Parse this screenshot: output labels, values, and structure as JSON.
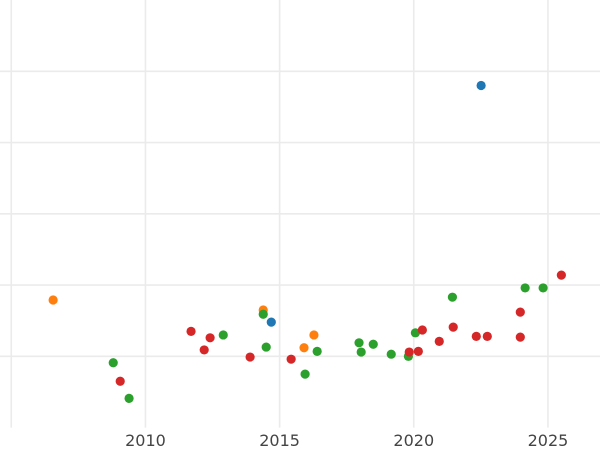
{
  "chart_data": {
    "type": "scatter",
    "title": "",
    "xlabel": "",
    "ylabel": "",
    "xlim": [
      2004.58,
      2026.94
    ],
    "ylim": [
      0,
      6
    ],
    "grid": true,
    "legend": "none",
    "x_ticks": [
      2005,
      2010,
      2015,
      2020,
      2025
    ],
    "x_tick_labels": [
      "",
      "2010",
      "2015",
      "2020",
      "2025"
    ],
    "y_ticks": [
      1,
      2,
      3,
      4,
      5
    ],
    "series": [
      {
        "color": "#1f77b4",
        "points": [
          [
            2014.69,
            1.48
          ],
          [
            2022.51,
            4.8
          ]
        ]
      },
      {
        "color": "#ff7f0e",
        "points": [
          [
            2006.56,
            1.79
          ],
          [
            2014.39,
            1.65
          ],
          [
            2015.91,
            1.12
          ],
          [
            2016.28,
            1.3
          ]
        ]
      },
      {
        "color": "#2ca02c",
        "points": [
          [
            2008.8,
            0.91
          ],
          [
            2009.39,
            0.41
          ],
          [
            2012.9,
            1.3
          ],
          [
            2014.39,
            1.59
          ],
          [
            2014.5,
            1.13
          ],
          [
            2015.95,
            0.75
          ],
          [
            2016.4,
            1.07
          ],
          [
            2017.96,
            1.19
          ],
          [
            2018.04,
            1.06
          ],
          [
            2018.49,
            1.17
          ],
          [
            2019.16,
            1.03
          ],
          [
            2019.8,
            1.0
          ],
          [
            2020.06,
            1.33
          ],
          [
            2021.44,
            1.83
          ],
          [
            2024.15,
            1.96
          ],
          [
            2024.82,
            1.96
          ]
        ]
      },
      {
        "color": "#d62728",
        "points": [
          [
            2009.06,
            0.65
          ],
          [
            2011.7,
            1.35
          ],
          [
            2012.19,
            1.09
          ],
          [
            2012.41,
            1.26
          ],
          [
            2013.9,
            0.99
          ],
          [
            2015.43,
            0.96
          ],
          [
            2019.83,
            1.06
          ],
          [
            2020.17,
            1.07
          ],
          [
            2020.32,
            1.37
          ],
          [
            2020.95,
            1.21
          ],
          [
            2021.47,
            1.41
          ],
          [
            2022.33,
            1.28
          ],
          [
            2022.74,
            1.28
          ],
          [
            2023.97,
            1.62
          ],
          [
            2023.97,
            1.27
          ],
          [
            2025.5,
            2.14
          ]
        ]
      }
    ]
  }
}
